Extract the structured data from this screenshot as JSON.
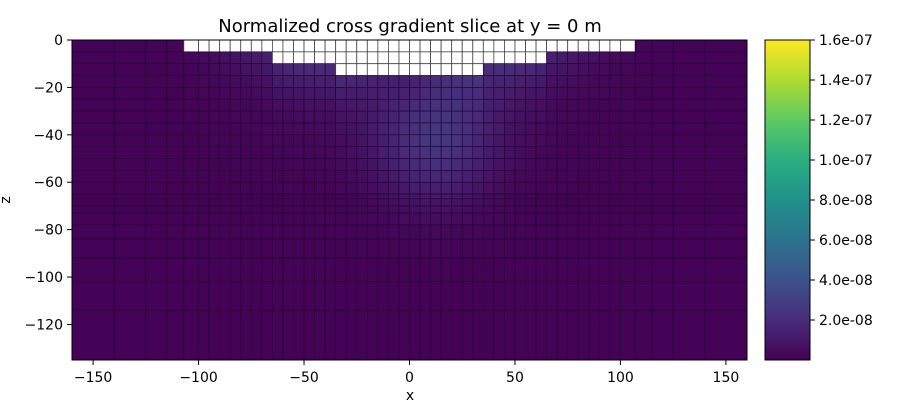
{
  "chart_data": {
    "type": "heatmap",
    "title": "Normalized cross gradient slice at y = 0 m",
    "xlabel": "x",
    "ylabel": "z",
    "colorbar_label": "",
    "colormap": "viridis",
    "xlim": [
      -160,
      160
    ],
    "ylim": [
      -135,
      0
    ],
    "clim": [
      0,
      1.6e-07
    ],
    "x_ticks": [
      -150,
      -100,
      -50,
      0,
      50,
      100,
      150
    ],
    "y_ticks": [
      0,
      -20,
      -40,
      -60,
      -80,
      -100,
      -120
    ],
    "colorbar_ticks": [
      {
        "value": 2e-08,
        "label": "2.0e-08"
      },
      {
        "value": 4e-08,
        "label": "4.0e-08"
      },
      {
        "value": 6e-08,
        "label": "6.0e-08"
      },
      {
        "value": 8e-08,
        "label": "8.0e-08"
      },
      {
        "value": 1e-07,
        "label": "1.0e-07"
      },
      {
        "value": 1.2e-07,
        "label": "1.2e-07"
      },
      {
        "value": 1.4e-07,
        "label": "1.4e-07"
      },
      {
        "value": 1.6e-07,
        "label": "1.6e-07"
      }
    ],
    "mesh": {
      "x_edges": [
        -160,
        -140,
        -125,
        -115,
        -107,
        -100,
        -95,
        -90,
        -85,
        -80,
        -75,
        -70,
        -65,
        -60,
        -55,
        -50,
        -45,
        -40,
        -35,
        -30,
        -25,
        -20,
        -15,
        -10,
        -5,
        0,
        5,
        10,
        15,
        20,
        25,
        30,
        35,
        40,
        45,
        50,
        55,
        60,
        65,
        70,
        75,
        80,
        85,
        90,
        95,
        100,
        107,
        115,
        125,
        140,
        160
      ],
      "z_edges": [
        0,
        -5,
        -10,
        -15,
        -20,
        -25,
        -30,
        -35,
        -40,
        -45,
        -50,
        -55,
        -60,
        -65,
        -67,
        -70,
        -73,
        -78,
        -84,
        -92,
        -102,
        -114,
        -135
      ],
      "air_cells_note": "",
      "topography": [
        {
          "x0": -107,
          "x1": 107,
          "z": -5
        },
        {
          "x0": -65,
          "x1": 65,
          "z": -10
        },
        {
          "x0": -35,
          "x1": 35,
          "z": -15
        }
      ],
      "background_value": 1e-09,
      "anomaly": {
        "cx": 12,
        "cz": -42,
        "sx": 28,
        "sz": 26,
        "peak": 2.3e-08
      },
      "near_surface": {
        "peak": 2.1e-08,
        "depth": 14
      }
    }
  }
}
